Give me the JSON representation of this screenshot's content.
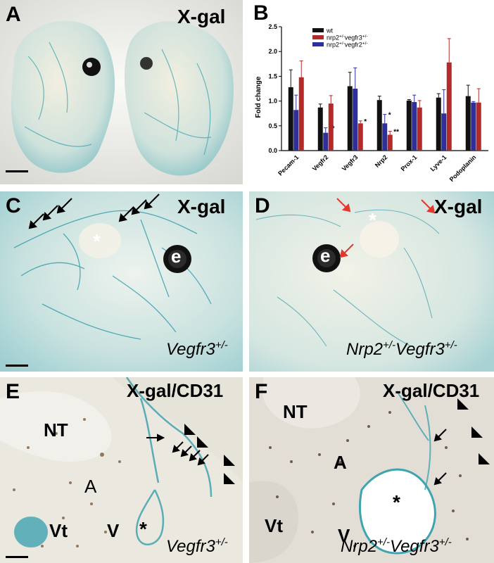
{
  "panels": {
    "A": {
      "letter": "A",
      "stain": "X-gal"
    },
    "B": {
      "letter": "B"
    },
    "C": {
      "letter": "C",
      "stain": "X-gal",
      "genotype": "Vegfr3",
      "genotype_sup": "+/-",
      "labels": {
        "eye": "e",
        "star": "*"
      }
    },
    "D": {
      "letter": "D",
      "stain": "X-gal",
      "genotype": "Nrp2",
      "genotype_sup": "+/-",
      "genotype2": "Vegfr3",
      "genotype2_sup": "+/-",
      "labels": {
        "eye": "e",
        "star": "*"
      }
    },
    "E": {
      "letter": "E",
      "stain": "X-gal/CD31",
      "genotype": "Vegfr3",
      "genotype_sup": "+/-",
      "labels": {
        "nt": "NT",
        "a": "A",
        "vt": "Vt",
        "v": "V",
        "star": "*"
      }
    },
    "F": {
      "letter": "F",
      "stain": "X-gal/CD31",
      "genotype": "Nrp2",
      "genotype_sup": "+/-",
      "genotype2": "Vegfr3",
      "genotype2_sup": "+/-",
      "labels": {
        "nt": "NT",
        "a": "A",
        "vt": "Vt",
        "v": "V",
        "star": "*"
      }
    }
  },
  "colors": {
    "black_bar": "#111111",
    "red_bar": "#b22a2a",
    "blue_bar": "#2f2f9c",
    "xgal_blue": "#3fa3b0",
    "tissue": "#eae6dc",
    "red_arrow": "#e03a2f",
    "cd31": "#6b4a2a"
  },
  "chart_data": {
    "type": "bar",
    "title": "",
    "xlabel": "",
    "ylabel": "Fold change",
    "ylim": [
      0,
      2.5
    ],
    "yticks": [
      "0.0",
      "0.5",
      "1.0",
      "1.5",
      "2.0",
      "2.5"
    ],
    "categories": [
      "Pecam-1",
      "Vegfr2",
      "Vegfr3",
      "Nrp2",
      "Prox-1",
      "Lyve-1",
      "Podoplanin"
    ],
    "legend_position": "top-left",
    "series": [
      {
        "name": "wt",
        "color": "#111111",
        "values": [
          1.28,
          0.87,
          1.3,
          1.02,
          1.01,
          1.07,
          1.1
        ],
        "errors": [
          0.35,
          0.07,
          0.28,
          0.08,
          0.02,
          0.08,
          0.22
        ]
      },
      {
        "name_prefix": "nrp2",
        "name_sup1": "+/-",
        "name_mid": "vegfr3",
        "name_sup2": "+/-",
        "color": "#2f2f9c",
        "values": [
          0.82,
          0.36,
          1.25,
          0.55,
          0.98,
          0.75,
          0.97
        ],
        "errors": [
          0.3,
          0.1,
          0.42,
          0.18,
          0.14,
          0.48,
          0.02
        ],
        "annotations": [
          "",
          "**",
          "",
          "*",
          "",
          "",
          ""
        ]
      },
      {
        "name_prefix": "nrp2",
        "name_sup1": "+/-",
        "name_mid": "vegfr2",
        "name_sup2": "+/-",
        "color": "#b22a2a",
        "values": [
          1.48,
          0.95,
          0.55,
          0.32,
          0.87,
          1.78,
          0.97
        ],
        "errors": [
          0.33,
          0.16,
          0.05,
          0.07,
          0.14,
          0.48,
          0.28
        ],
        "annotations": [
          "",
          "",
          "*",
          "**",
          "",
          "",
          ""
        ]
      }
    ]
  }
}
